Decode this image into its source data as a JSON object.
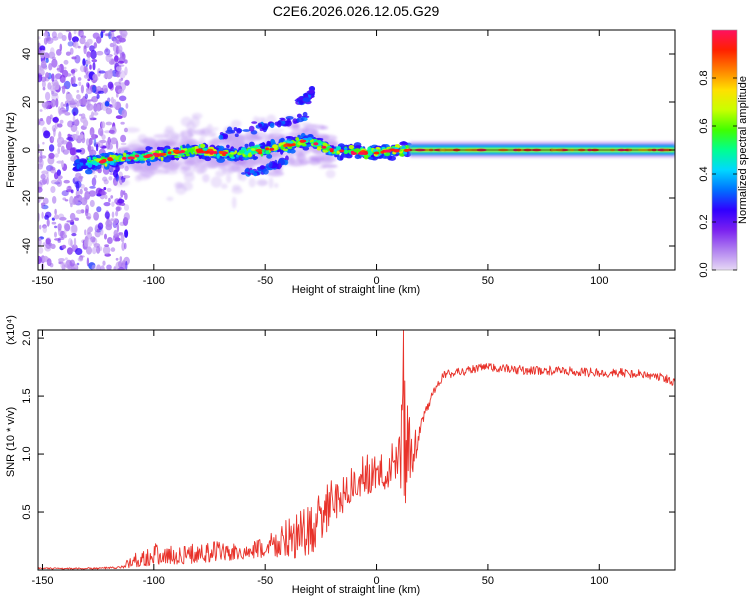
{
  "chart_data": [
    {
      "type": "heatmap",
      "title": "C2E6.2026.026.12.05.G29",
      "xlabel": "Height of straight line (km)",
      "ylabel": "Frequency (Hz)",
      "xlim": [
        -152,
        134
      ],
      "ylim": [
        -50,
        50
      ],
      "xticks": [
        -150,
        -100,
        -50,
        0,
        50,
        100
      ],
      "xtick_labels": [
        "-150",
        "-100",
        "-50",
        "0",
        "50",
        "100"
      ],
      "yticks": [
        -40,
        -20,
        0,
        20,
        40
      ],
      "ytick_labels": [
        "-40",
        "-20",
        "0",
        "20",
        "40"
      ],
      "colorbar": {
        "label": "Normalized spectral amplitude",
        "range": [
          0,
          1
        ],
        "ticks": [
          0.0,
          0.2,
          0.4,
          0.6,
          0.8
        ],
        "tick_labels": [
          "0.0",
          "0.2",
          "0.4",
          "0.6",
          "0.8"
        ],
        "colormap": [
          "#e6d8f5",
          "#b080f0",
          "#7a20f0",
          "#3000ff",
          "#0070ff",
          "#00d8ff",
          "#00ff90",
          "#40ff00",
          "#c8ff00",
          "#ffe000",
          "#ff8000",
          "#ff2000",
          "#ff1060"
        ]
      },
      "ridge": {
        "x": [
          -135,
          -120,
          -100,
          -80,
          -65,
          -50,
          -40,
          -30,
          -25,
          -20,
          -10,
          0,
          10,
          20,
          50,
          100,
          134
        ],
        "y": [
          -6,
          -4,
          -2,
          0,
          -2,
          0,
          2,
          4,
          2,
          0,
          -1,
          -1,
          0,
          0,
          0,
          0,
          0
        ]
      },
      "branches": [
        {
          "x": [
            -70,
            -60,
            -50,
            -40,
            -30
          ],
          "y": [
            6,
            8,
            10,
            12,
            14
          ]
        },
        {
          "x": [
            -35,
            -31,
            -28
          ],
          "y": [
            20,
            22,
            25
          ]
        },
        {
          "x": [
            -60,
            -50,
            -40
          ],
          "y": [
            -10,
            -8,
            -4
          ]
        }
      ]
    },
    {
      "type": "line",
      "xlabel": "Height of straight line (km)",
      "ylabel": "SNR (10 * v/v)",
      "scale_label": "(x10⁴)",
      "xlim": [
        -152,
        134
      ],
      "ylim": [
        0.0,
        2.07
      ],
      "xticks": [
        -150,
        -100,
        -50,
        0,
        50,
        100
      ],
      "xtick_labels": [
        "-150",
        "-100",
        "-50",
        "0",
        "50",
        "100"
      ],
      "yticks": [
        0.5,
        1.0,
        1.5,
        2.0
      ],
      "ytick_labels": [
        "0.5",
        "1.0",
        "1.5",
        "2.0"
      ],
      "color": "#e8322a",
      "envelope": {
        "x": [
          -152,
          -130,
          -115,
          -111,
          -106,
          -100,
          -90,
          -80,
          -70,
          -60,
          -50,
          -42,
          -35,
          -28,
          -20,
          -12,
          -5,
          0,
          5,
          10,
          13,
          17,
          20,
          25,
          30,
          40,
          50,
          60,
          70,
          80,
          90,
          100,
          110,
          120,
          128,
          134
        ],
        "y": [
          0.02,
          0.02,
          0.03,
          0.12,
          0.18,
          0.24,
          0.2,
          0.24,
          0.26,
          0.2,
          0.3,
          0.44,
          0.5,
          0.62,
          0.78,
          0.9,
          1.0,
          1.0,
          1.0,
          1.25,
          1.8,
          1.2,
          1.3,
          1.55,
          1.72,
          1.76,
          1.79,
          1.77,
          1.76,
          1.76,
          1.75,
          1.74,
          1.74,
          1.73,
          1.7,
          1.66
        ]
      },
      "noise_floor": {
        "x": [
          -152,
          -115,
          -111,
          -100,
          -90,
          -80,
          -70,
          -60,
          -50,
          -40,
          -30,
          -20,
          -12,
          -5,
          0,
          5,
          10,
          13,
          17,
          20
        ],
        "y": [
          0.0,
          0.01,
          0.02,
          0.04,
          0.05,
          0.06,
          0.07,
          0.09,
          0.1,
          0.1,
          0.1,
          0.4,
          0.55,
          0.65,
          0.68,
          0.7,
          0.75,
          0.6,
          0.85,
          1.2
        ]
      },
      "peaks": [
        {
          "x": 12,
          "y": 2.07
        },
        {
          "x": 13,
          "y": 0.58
        }
      ]
    }
  ]
}
